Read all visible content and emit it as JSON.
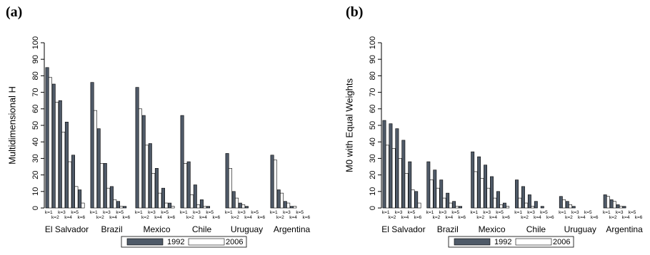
{
  "panels": [
    {
      "letter": "(a)"
    },
    {
      "letter": "(b)"
    }
  ],
  "colors": {
    "series_1992": "#4f5a68",
    "series_2006": "#ffffff",
    "outline": "#000000"
  },
  "chart_data": [
    {
      "type": "bar",
      "ylabel": "Multidimensional H",
      "ylim": [
        0,
        100
      ],
      "yticks": [
        0,
        10,
        20,
        30,
        40,
        50,
        60,
        70,
        80,
        90,
        100
      ],
      "grid": false,
      "legend": "bottom",
      "groups": [
        "El Salvador",
        "Brazil",
        "Mexico",
        "Chile",
        "Uruguay",
        "Argentina"
      ],
      "categories": [
        "k=1",
        "k=2",
        "k=3",
        "k=4",
        "k=5",
        "k=6"
      ],
      "series": [
        {
          "name": "1992",
          "values": [
            [
              85,
              75,
              65,
              52,
              32,
              11
            ],
            [
              76,
              48,
              27,
              13,
              4,
              1
            ],
            [
              73,
              56,
              39,
              24,
              12,
              3
            ],
            [
              56,
              28,
              14,
              5,
              1,
              0
            ],
            [
              33,
              10,
              3,
              1,
              0,
              0
            ],
            [
              32,
              11,
              4,
              1,
              0,
              0
            ]
          ]
        },
        {
          "name": "2006",
          "values": [
            [
              79,
              64,
              46,
              28,
              13,
              3
            ],
            [
              59,
              27,
              12,
              5,
              1,
              0
            ],
            [
              60,
              38,
              21,
              9,
              3,
              1
            ],
            [
              27,
              8,
              2,
              1,
              0,
              0
            ],
            [
              24,
              6,
              2,
              0,
              0,
              0
            ],
            [
              29,
              9,
              3,
              1,
              0,
              0
            ]
          ]
        }
      ]
    },
    {
      "type": "bar",
      "ylabel": "M0 with Equal Weights",
      "ylim": [
        0,
        100
      ],
      "yticks": [
        0,
        10,
        20,
        30,
        40,
        50,
        60,
        70,
        80,
        90,
        100
      ],
      "grid": false,
      "legend": "bottom",
      "groups": [
        "El Salvador",
        "Brazil",
        "Mexico",
        "Chile",
        "Uruguay",
        "Argentina"
      ],
      "categories": [
        "k=1",
        "k=2",
        "k=3",
        "k=4",
        "k=5",
        "k=6"
      ],
      "series": [
        {
          "name": "1992",
          "values": [
            [
              53,
              51,
              48,
              41,
              28,
              10
            ],
            [
              28,
              23,
              17,
              9,
              4,
              1
            ],
            [
              34,
              31,
              26,
              19,
              10,
              3
            ],
            [
              17,
              13,
              8,
              4,
              1,
              0
            ],
            [
              7,
              4,
              1,
              0,
              0,
              0
            ],
            [
              8,
              5,
              2,
              1,
              0,
              0
            ]
          ]
        },
        {
          "name": "2006",
          "values": [
            [
              38,
              36,
              30,
              21,
              11,
              3
            ],
            [
              17,
              12,
              6,
              3,
              1,
              0
            ],
            [
              22,
              18,
              12,
              6,
              2,
              1
            ],
            [
              6,
              3,
              1,
              0,
              0,
              0
            ],
            [
              5,
              2,
              0,
              0,
              0,
              0
            ],
            [
              7,
              4,
              1,
              0,
              0,
              0
            ]
          ]
        }
      ]
    }
  ]
}
